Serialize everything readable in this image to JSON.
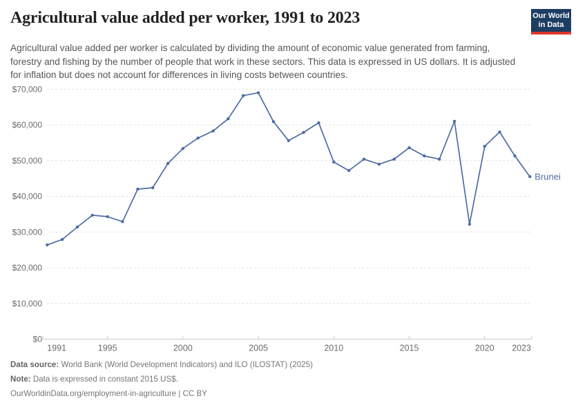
{
  "header": {
    "title": "Agricultural value added per worker, 1991 to 2023",
    "subtitle": "Agricultural value added per worker is calculated by dividing the amount of economic value generated from farming, forestry and fishing by the number of people that work in these sectors. This data is expressed in US dollars. It is adjusted for inflation but does not account for differences in living costs between countries.",
    "logo": {
      "line1": "Our World",
      "line2": "in Data"
    }
  },
  "chart_data": {
    "type": "line",
    "title": "Agricultural value added per worker, 1991 to 2023",
    "entity": "Brunei",
    "x": [
      1991,
      1992,
      1993,
      1994,
      1995,
      1996,
      1997,
      1998,
      1999,
      2000,
      2001,
      2002,
      2003,
      2004,
      2005,
      2006,
      2007,
      2008,
      2009,
      2010,
      2011,
      2012,
      2013,
      2014,
      2015,
      2016,
      2017,
      2018,
      2019,
      2020,
      2021,
      2022,
      2023
    ],
    "values": [
      26400,
      27900,
      31400,
      34700,
      34300,
      32900,
      42000,
      42400,
      49200,
      53400,
      56300,
      58300,
      61700,
      68200,
      69000,
      60900,
      55600,
      57900,
      60600,
      49600,
      47200,
      50400,
      49000,
      50400,
      53600,
      51300,
      50400,
      61000,
      32200,
      54000,
      58000,
      51300,
      45500
    ],
    "xlabel": "",
    "ylabel": "",
    "xlim": [
      1991,
      2023
    ],
    "ylim": [
      0,
      70000
    ],
    "yticks": [
      0,
      10000,
      20000,
      30000,
      40000,
      50000,
      60000,
      70000
    ],
    "ytick_labels": [
      "$0",
      "$10,000",
      "$20,000",
      "$30,000",
      "$40,000",
      "$50,000",
      "$60,000",
      "$70,000"
    ],
    "xticks": [
      1991,
      1995,
      2000,
      2005,
      2010,
      2015,
      2020,
      2023
    ],
    "grid": "horizontal-dashed",
    "legend_position": "end-of-line-label"
  },
  "footer": {
    "data_source_label": "Data source:",
    "data_source": " World Bank (World Development Indicators) and ILO (ILOSTAT) (2025)",
    "note_label": "Note:",
    "note": " Data is expressed in constant 2015 US$.",
    "link": "OurWorldinData.org/employment-in-agriculture | CC BY"
  },
  "colors": {
    "line": "#4c6ba4",
    "entity_label": "#4c6ba4",
    "grid": "#e0e0e0",
    "axis": "#c8c8c8",
    "tick_text": "#6b6b6b",
    "logo_bg": "#1d3d63",
    "logo_red": "#dc362c"
  }
}
